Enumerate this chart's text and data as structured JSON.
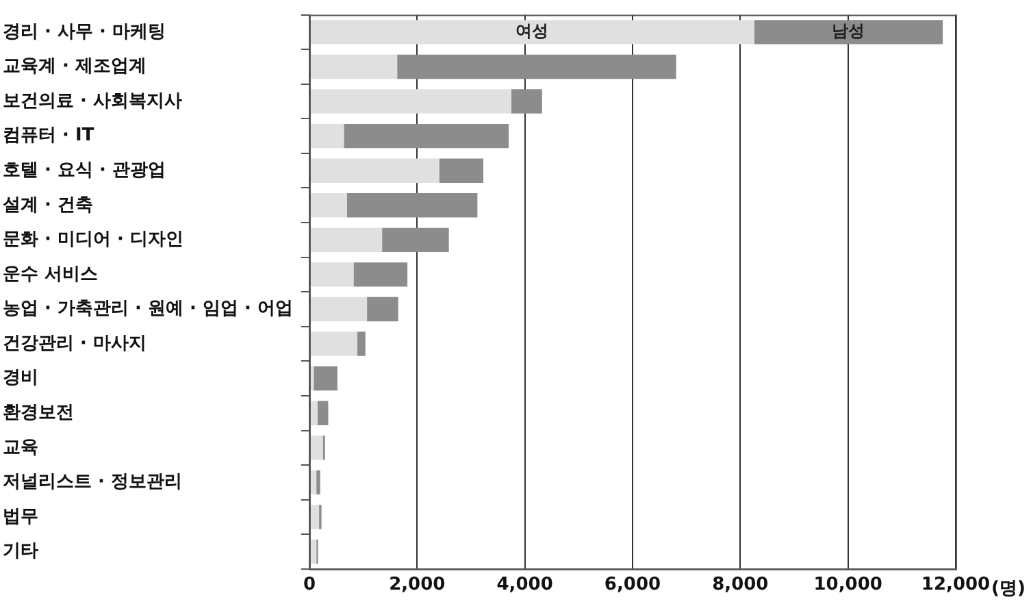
{
  "chart_data": {
    "type": "bar",
    "orientation": "horizontal",
    "stacked": true,
    "xlabel": "(명)",
    "categories": [
      "경리 · 사무 · 마케팅",
      "교육계 · 제조업계",
      "보건의료 · 사회복지사",
      "컴퓨터 · IT",
      "호텔 · 요식 · 관광업",
      "설계 · 건축",
      "문화 · 미디어 · 디자인",
      "운수 서비스",
      "농업 · 가축관리 · 원예 · 임업 · 어업",
      "건강관리 · 마사지",
      "경비",
      "환경보전",
      "교육",
      "저널리스트 · 정보관리",
      "법무",
      "기타"
    ],
    "series": [
      {
        "name": "여성",
        "color": "#e0e0e0",
        "values": [
          8260,
          1630,
          3750,
          640,
          2410,
          700,
          1350,
          820,
          1070,
          890,
          80,
          150,
          250,
          130,
          180,
          130
        ]
      },
      {
        "name": "남성",
        "color": "#8c8c8c",
        "values": [
          3500,
          5180,
          570,
          3060,
          820,
          2420,
          1240,
          1000,
          580,
          150,
          440,
          200,
          40,
          70,
          45,
          30
        ]
      }
    ],
    "xlim": [
      0,
      12000
    ],
    "xticks": [
      0,
      {
        "value": 2000,
        "label": "2,000"
      },
      {
        "value": 4000,
        "label": "4,000"
      },
      {
        "value": 6000,
        "label": "6,000"
      },
      {
        "value": 8000,
        "label": "8,000"
      },
      {
        "value": 10000,
        "label": "10,000"
      },
      {
        "value": 12000,
        "label": "12,000"
      }
    ],
    "grid": "x",
    "legend": false
  }
}
